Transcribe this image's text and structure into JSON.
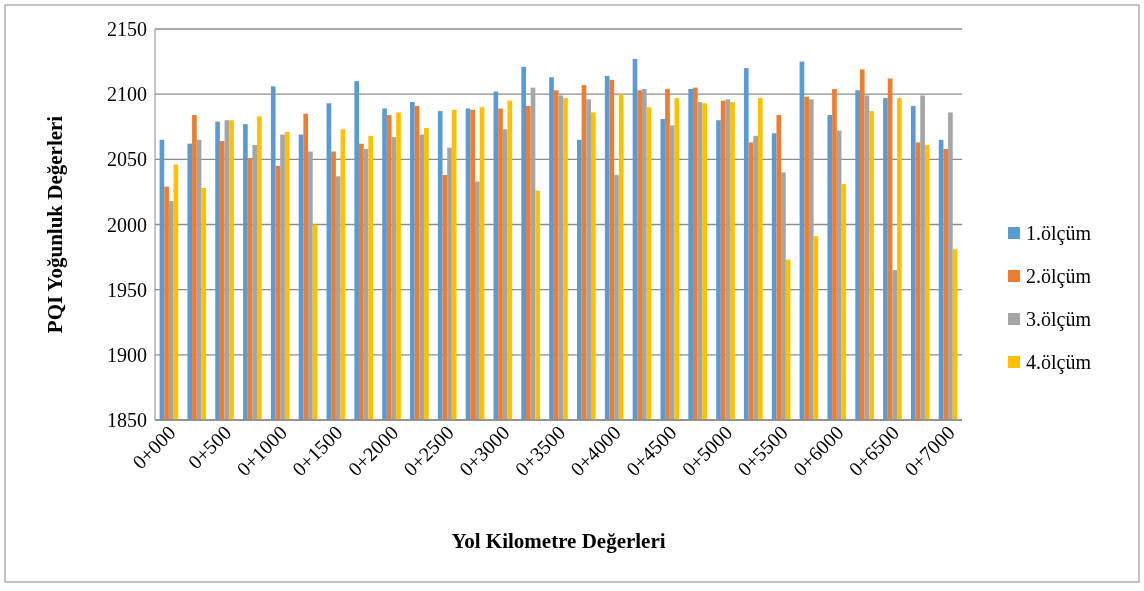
{
  "chart_data": {
    "type": "bar",
    "xlabel": "Yol Kilometre Değerleri",
    "ylabel": "PQI Yoğunluk Değerleri",
    "categories": [
      "0+000",
      null,
      "0+500",
      null,
      "0+1000",
      null,
      "0+1500",
      null,
      "0+2000",
      null,
      "0+2500",
      null,
      "0+3000",
      null,
      "0+3500",
      null,
      "0+4000",
      null,
      "0+4500",
      null,
      "0+5000",
      null,
      "0+5500",
      null,
      "0+6000",
      null,
      "0+6500",
      null,
      "0+7000"
    ],
    "series": [
      {
        "name": "1.ölçüm",
        "color": "#5b9bd5",
        "values": [
          2065,
          2062,
          2079,
          2077,
          2106,
          2069,
          2093,
          2110,
          2089,
          2094,
          2087,
          2089,
          2102,
          2121,
          2113,
          2065,
          2114,
          2127,
          2081,
          2104,
          2080,
          2120,
          2070,
          2125,
          2084,
          2103,
          2097,
          2091,
          2065
        ]
      },
      {
        "name": "2.ölçüm",
        "color": "#ed7d31",
        "values": [
          2029,
          2084,
          2064,
          2051,
          2045,
          2085,
          2056,
          2062,
          2084,
          2091,
          2038,
          2088,
          2089,
          2091,
          2103,
          2107,
          2111,
          2103,
          2104,
          2105,
          2095,
          2063,
          2084,
          2098,
          2104,
          2119,
          2112,
          2063,
          2058
        ]
      },
      {
        "name": "3.ölçüm",
        "color": "#a5a5a5",
        "values": [
          2018,
          2065,
          2080,
          2061,
          2069,
          2056,
          2037,
          2058,
          2067,
          2069,
          2059,
          2033,
          2073,
          2105,
          2099,
          2096,
          2038,
          2104,
          2076,
          2094,
          2096,
          2068,
          2040,
          2096,
          2072,
          2099,
          1965,
          2099,
          2086
        ]
      },
      {
        "name": "4.ölçüm",
        "color": "#ffc000",
        "values": [
          2046,
          2028,
          2080,
          2083,
          2071,
          2000,
          2073,
          2068,
          2086,
          2074,
          2088,
          2090,
          2095,
          2026,
          2097,
          2086,
          2100,
          2090,
          2097,
          2093,
          2094,
          2097,
          1973,
          1991,
          2031,
          2087,
          2097,
          2061,
          1981
        ]
      }
    ],
    "ylim": [
      1850,
      2150
    ],
    "yticks": [
      1850,
      1900,
      1950,
      2000,
      2050,
      2100,
      2150
    ],
    "grid": "y",
    "legend": "right"
  }
}
